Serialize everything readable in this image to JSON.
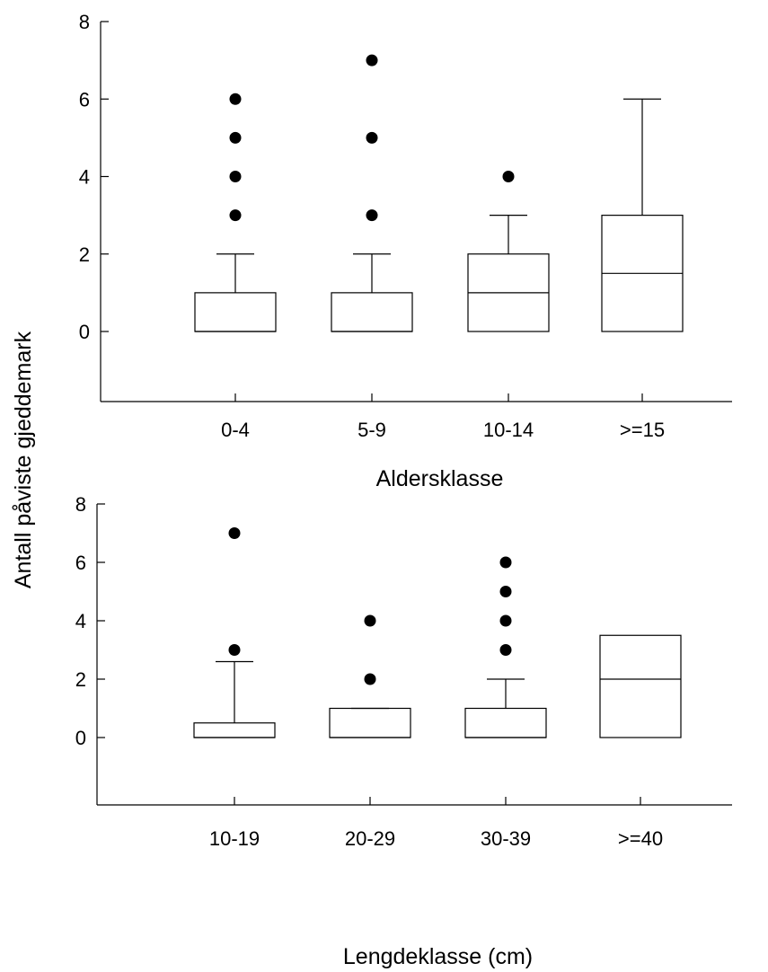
{
  "ylabel": "Antall påviste gjeddemark",
  "chart_data": [
    {
      "type": "box",
      "xlabel": "Aldersklasse",
      "ylim": [
        -1.8,
        8
      ],
      "yticks": [
        0,
        2,
        4,
        6,
        8
      ],
      "categories": [
        "0-4",
        "5-9",
        "10-14",
        ">=15"
      ],
      "boxes": [
        {
          "q1": 0,
          "median": 0,
          "q3": 1,
          "lower_whisker": 0,
          "upper_whisker": 2,
          "outliers": [
            3,
            4,
            5,
            6
          ]
        },
        {
          "q1": 0,
          "median": 0,
          "q3": 1,
          "lower_whisker": 0,
          "upper_whisker": 2,
          "outliers": [
            3,
            5,
            7
          ]
        },
        {
          "q1": 0,
          "median": 1,
          "q3": 2,
          "lower_whisker": 0,
          "upper_whisker": 3,
          "outliers": [
            4
          ]
        },
        {
          "q1": 0,
          "median": 1.5,
          "q3": 3,
          "lower_whisker": 0,
          "upper_whisker": 6,
          "outliers": []
        }
      ]
    },
    {
      "type": "box",
      "xlabel": "Lengdeklasse (cm)",
      "ylim": [
        -1.8,
        8
      ],
      "yticks": [
        0,
        2,
        4,
        6,
        8
      ],
      "categories": [
        "10-19",
        "20-29",
        "30-39",
        ">=40"
      ],
      "boxes": [
        {
          "q1": 0,
          "median": 0,
          "q3": 0.5,
          "lower_whisker": 0,
          "upper_whisker": 2.6,
          "outliers": [
            3,
            7
          ]
        },
        {
          "q1": 0,
          "median": 0,
          "q3": 1,
          "lower_whisker": 0,
          "upper_whisker": 1,
          "outliers": [
            2,
            4
          ]
        },
        {
          "q1": 0,
          "median": 0,
          "q3": 1,
          "lower_whisker": 0,
          "upper_whisker": 2,
          "outliers": [
            3,
            4,
            5,
            6
          ]
        },
        {
          "q1": 0,
          "median": 2,
          "q3": 3.5,
          "lower_whisker": 0,
          "upper_whisker": 3.5,
          "outliers": []
        }
      ]
    }
  ]
}
